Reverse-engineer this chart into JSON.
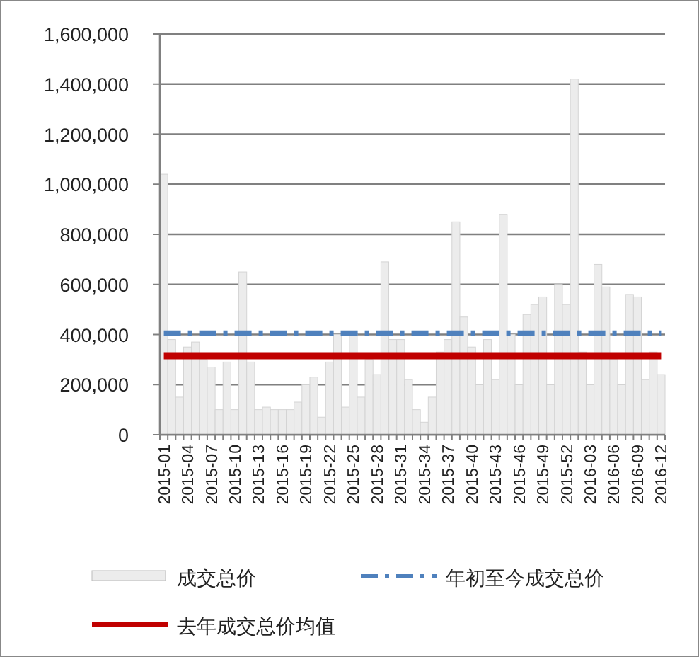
{
  "chart_data": {
    "type": "bar",
    "categories": [
      "2015-01",
      null,
      null,
      "2015-04",
      null,
      null,
      "2015-07",
      null,
      null,
      "2015-10",
      null,
      null,
      "2015-13",
      null,
      null,
      "2015-16",
      null,
      null,
      "2015-19",
      null,
      null,
      "2015-22",
      null,
      null,
      "2015-25",
      null,
      null,
      "2015-28",
      null,
      null,
      "2015-31",
      null,
      null,
      "2015-34",
      null,
      null,
      "2015-37",
      null,
      null,
      "2015-40",
      null,
      null,
      "2015-43",
      null,
      null,
      "2015-46",
      null,
      null,
      "2015-49",
      null,
      null,
      "2015-52",
      null,
      null,
      "2016-03",
      null,
      null,
      "2016-06",
      null,
      null,
      "2016-09",
      null,
      null,
      "2016-12"
    ],
    "series": [
      {
        "name": "成交总价",
        "color": "#ececec",
        "values": [
          1040000,
          380000,
          150000,
          350000,
          370000,
          300000,
          270000,
          100000,
          290000,
          100000,
          650000,
          290000,
          100000,
          110000,
          100000,
          100000,
          100000,
          130000,
          200000,
          230000,
          70000,
          290000,
          400000,
          110000,
          400000,
          150000,
          300000,
          240000,
          690000,
          380000,
          380000,
          220000,
          100000,
          50000,
          150000,
          330000,
          380000,
          850000,
          470000,
          350000,
          200000,
          380000,
          220000,
          880000,
          400000,
          200000,
          480000,
          520000,
          550000,
          200000,
          600000,
          520000,
          1420000,
          330000,
          200000,
          680000,
          590000,
          300000,
          200000,
          560000,
          550000,
          220000,
          330000,
          240000
        ]
      },
      {
        "name": "年初至今成交总价",
        "type": "line",
        "color": "#4f81bd",
        "line_style": "dashed",
        "values": [
          405000,
          405000,
          405000,
          405000,
          405000,
          405000,
          405000,
          405000,
          405000,
          405000,
          405000,
          405000,
          405000,
          405000,
          405000,
          405000,
          405000,
          405000,
          405000,
          405000,
          405000,
          405000,
          405000,
          405000,
          405000,
          405000,
          405000,
          405000,
          405000,
          405000,
          405000,
          405000,
          405000,
          405000,
          405000,
          405000,
          405000,
          405000,
          405000,
          405000,
          405000,
          405000,
          405000,
          405000,
          405000,
          405000,
          405000,
          405000,
          405000,
          405000,
          405000,
          405000,
          405000,
          405000,
          405000,
          405000,
          405000,
          405000,
          405000,
          405000,
          405000,
          405000,
          405000,
          405000
        ]
      },
      {
        "name": "去年成交总价均值",
        "type": "line",
        "color": "#c00000",
        "line_style": "solid",
        "values": [
          315000,
          315000,
          315000,
          315000,
          315000,
          315000,
          315000,
          315000,
          315000,
          315000,
          315000,
          315000,
          315000,
          315000,
          315000,
          315000,
          315000,
          315000,
          315000,
          315000,
          315000,
          315000,
          315000,
          315000,
          315000,
          315000,
          315000,
          315000,
          315000,
          315000,
          315000,
          315000,
          315000,
          315000,
          315000,
          315000,
          315000,
          315000,
          315000,
          315000,
          315000,
          315000,
          315000,
          315000,
          315000,
          315000,
          315000,
          315000,
          315000,
          315000,
          315000,
          315000,
          315000,
          315000,
          315000,
          315000,
          315000,
          315000,
          315000,
          315000,
          315000,
          315000,
          315000,
          315000
        ]
      }
    ],
    "ylim": [
      0,
      1600000
    ],
    "yticks": [
      {
        "value": 0,
        "label": "0"
      },
      {
        "value": 200000,
        "label": "200,000"
      },
      {
        "value": 400000,
        "label": "400,000"
      },
      {
        "value": 600000,
        "label": "600,000"
      },
      {
        "value": 800000,
        "label": "800,000"
      },
      {
        "value": 1000000,
        "label": "1,000,000"
      },
      {
        "value": 1200000,
        "label": "1,200,000"
      },
      {
        "value": 1400000,
        "label": "1,400,000"
      },
      {
        "value": 1600000,
        "label": "1,600,000"
      }
    ],
    "grid": "y",
    "legend": "bottom"
  }
}
